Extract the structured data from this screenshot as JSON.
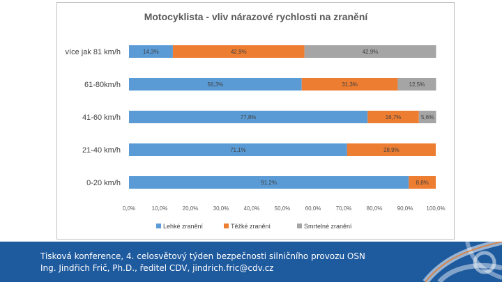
{
  "chart_data": {
    "type": "bar",
    "stacked": true,
    "orientation": "horizontal",
    "percent": true,
    "title": "Motocyklista - vliv nárazové rychlosti na zranění",
    "categories": [
      "více jak 81 km/h",
      "61-80km/h",
      "41-60 km/h",
      "21-40 km/h",
      "0-20 km/h"
    ],
    "series": [
      {
        "name": "Lehké zranění",
        "values": [
          14.3,
          56.3,
          77.8,
          71.1,
          91.2
        ],
        "labels": [
          "14,3%",
          "56,3%",
          "77,8%",
          "71,1%",
          "91,2%"
        ],
        "color": "#5b9bd5"
      },
      {
        "name": "Těžké zranění",
        "values": [
          42.9,
          31.3,
          16.7,
          28.9,
          8.8
        ],
        "labels": [
          "42,9%",
          "31,3%",
          "16,7%",
          "28,9%",
          "8,8%"
        ],
        "color": "#ed7d31"
      },
      {
        "name": "Smrtelné zranění",
        "values": [
          42.9,
          12.5,
          5.6,
          0,
          0
        ],
        "labels": [
          "42,9%",
          "12,5%",
          "5,6%",
          "",
          ""
        ],
        "color": "#a5a5a5"
      }
    ],
    "xlim": [
      0,
      100
    ],
    "xticks": [
      "0,0%",
      "10,0%",
      "20,0%",
      "30,0%",
      "40,0%",
      "50,0%",
      "60,0%",
      "70,0%",
      "80,0%",
      "90,0%",
      "100,0%"
    ],
    "legend": "bottom",
    "grid": false
  },
  "footer": {
    "line1": "Tisková konference, 4. celosvětový týden bezpečnosti silničního provozu OSN",
    "line2": "Ing. Jindřich Frič, Ph.D., ředitel CDV, jindrich.fric@cdv.cz",
    "background": "#1e5a9e"
  }
}
